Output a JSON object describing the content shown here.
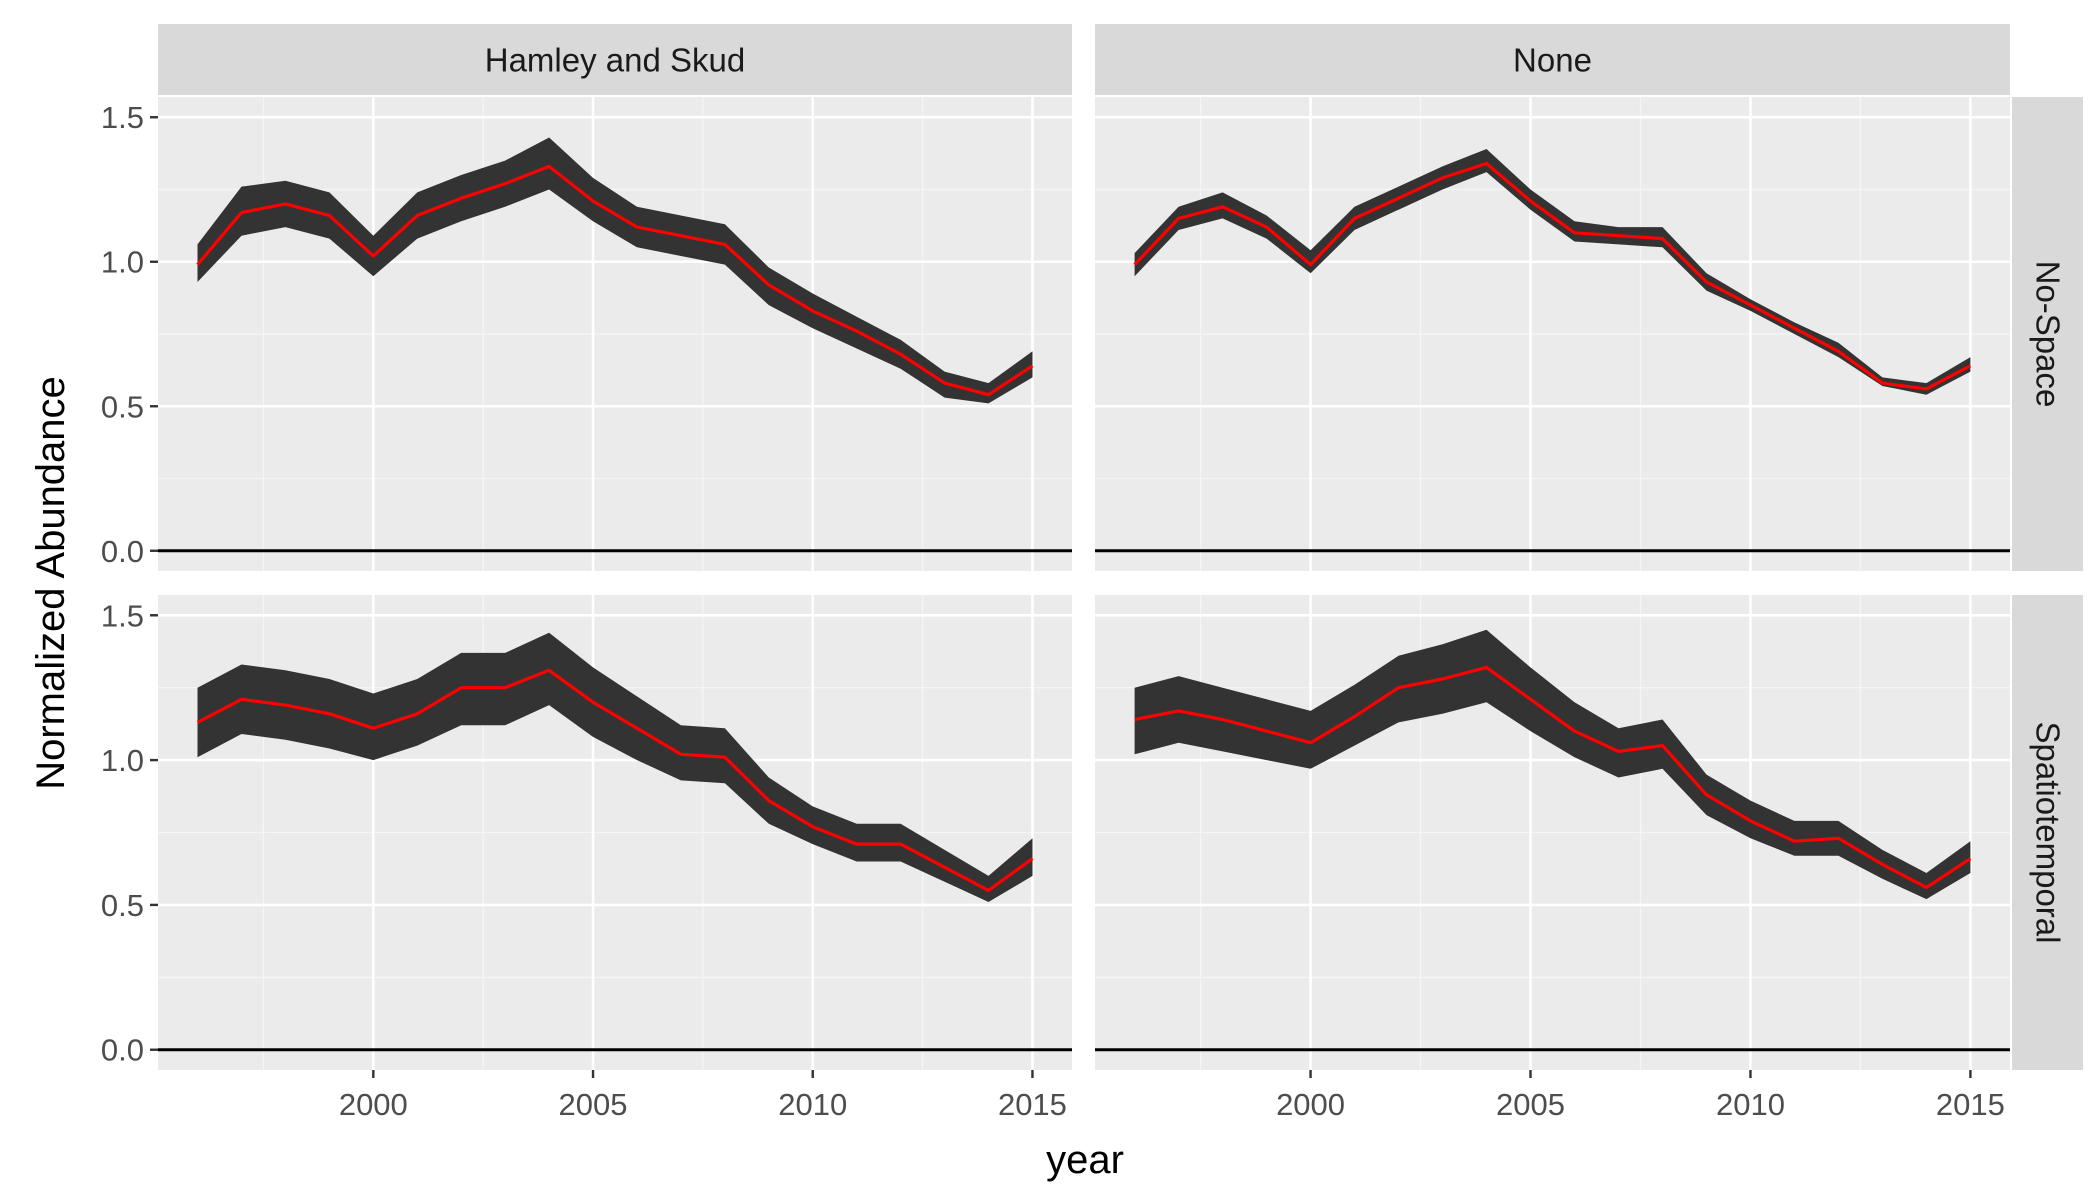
{
  "chart_data": {
    "type": "line",
    "xlabel": "year",
    "ylabel": "Normalized Abundance",
    "col_facets": [
      "Hamley and Skud",
      "None"
    ],
    "row_facets": [
      "No-Space",
      "Spatiotemporal"
    ],
    "x_ticks": [
      2000,
      2005,
      2010,
      2015
    ],
    "y_ticks": [
      "0.0",
      "0.5",
      "1.0",
      "1.5"
    ],
    "xlim": [
      1995.1,
      2015.9
    ],
    "ylim": [
      -0.07,
      1.57
    ],
    "x": [
      1996,
      1997,
      1998,
      1999,
      2000,
      2001,
      2002,
      2003,
      2004,
      2005,
      2006,
      2007,
      2008,
      2009,
      2010,
      2011,
      2012,
      2013,
      2014,
      2015
    ],
    "hline_y": 0,
    "colors": {
      "line": "#ff0000",
      "ribbon": "#333333",
      "panel_bg": "#ebebeb",
      "strip_bg": "#d9d9d9",
      "grid_major": "#ffffff",
      "hline": "#000000"
    },
    "panels": [
      {
        "col": "Hamley and Skud",
        "row": "No-Space",
        "estimate": [
          0.99,
          1.17,
          1.2,
          1.16,
          1.02,
          1.16,
          1.22,
          1.27,
          1.33,
          1.21,
          1.12,
          1.09,
          1.06,
          0.92,
          0.83,
          0.76,
          0.68,
          0.58,
          0.54,
          0.64
        ],
        "lower": [
          0.93,
          1.09,
          1.12,
          1.08,
          0.95,
          1.08,
          1.14,
          1.19,
          1.25,
          1.14,
          1.05,
          1.02,
          0.99,
          0.85,
          0.77,
          0.7,
          0.63,
          0.53,
          0.51,
          0.6
        ],
        "upper": [
          1.06,
          1.26,
          1.28,
          1.24,
          1.09,
          1.24,
          1.3,
          1.35,
          1.43,
          1.29,
          1.19,
          1.16,
          1.13,
          0.98,
          0.89,
          0.81,
          0.73,
          0.62,
          0.58,
          0.69
        ]
      },
      {
        "col": "None",
        "row": "No-Space",
        "estimate": [
          0.99,
          1.15,
          1.19,
          1.12,
          0.99,
          1.15,
          1.22,
          1.29,
          1.34,
          1.21,
          1.1,
          1.09,
          1.08,
          0.93,
          0.85,
          0.77,
          0.69,
          0.58,
          0.56,
          0.64
        ],
        "lower": [
          0.95,
          1.11,
          1.15,
          1.08,
          0.96,
          1.11,
          1.18,
          1.25,
          1.31,
          1.18,
          1.07,
          1.06,
          1.05,
          0.9,
          0.83,
          0.75,
          0.67,
          0.57,
          0.54,
          0.62
        ],
        "upper": [
          1.03,
          1.19,
          1.24,
          1.16,
          1.04,
          1.19,
          1.26,
          1.33,
          1.39,
          1.25,
          1.14,
          1.12,
          1.12,
          0.96,
          0.87,
          0.79,
          0.72,
          0.6,
          0.58,
          0.67
        ]
      },
      {
        "col": "Hamley and Skud",
        "row": "Spatiotemporal",
        "estimate": [
          1.13,
          1.21,
          1.19,
          1.16,
          1.11,
          1.16,
          1.25,
          1.25,
          1.31,
          1.2,
          1.11,
          1.02,
          1.01,
          0.86,
          0.77,
          0.71,
          0.71,
          0.63,
          0.55,
          0.66
        ],
        "lower": [
          1.01,
          1.09,
          1.07,
          1.04,
          1.0,
          1.05,
          1.12,
          1.12,
          1.19,
          1.08,
          1.0,
          0.93,
          0.92,
          0.78,
          0.71,
          0.65,
          0.65,
          0.58,
          0.51,
          0.6
        ],
        "upper": [
          1.25,
          1.33,
          1.31,
          1.28,
          1.23,
          1.28,
          1.37,
          1.37,
          1.44,
          1.32,
          1.22,
          1.12,
          1.11,
          0.94,
          0.84,
          0.78,
          0.78,
          0.69,
          0.6,
          0.73
        ]
      },
      {
        "col": "None",
        "row": "Spatiotemporal",
        "estimate": [
          1.14,
          1.17,
          1.14,
          1.1,
          1.06,
          1.15,
          1.25,
          1.28,
          1.32,
          1.21,
          1.1,
          1.03,
          1.05,
          0.88,
          0.79,
          0.72,
          0.73,
          0.64,
          0.56,
          0.66
        ],
        "lower": [
          1.02,
          1.06,
          1.03,
          1.0,
          0.97,
          1.05,
          1.13,
          1.16,
          1.2,
          1.1,
          1.01,
          0.94,
          0.97,
          0.81,
          0.73,
          0.67,
          0.67,
          0.59,
          0.52,
          0.61
        ],
        "upper": [
          1.25,
          1.29,
          1.25,
          1.21,
          1.17,
          1.26,
          1.36,
          1.4,
          1.45,
          1.32,
          1.2,
          1.11,
          1.14,
          0.95,
          0.86,
          0.79,
          0.79,
          0.69,
          0.61,
          0.72
        ]
      }
    ]
  }
}
